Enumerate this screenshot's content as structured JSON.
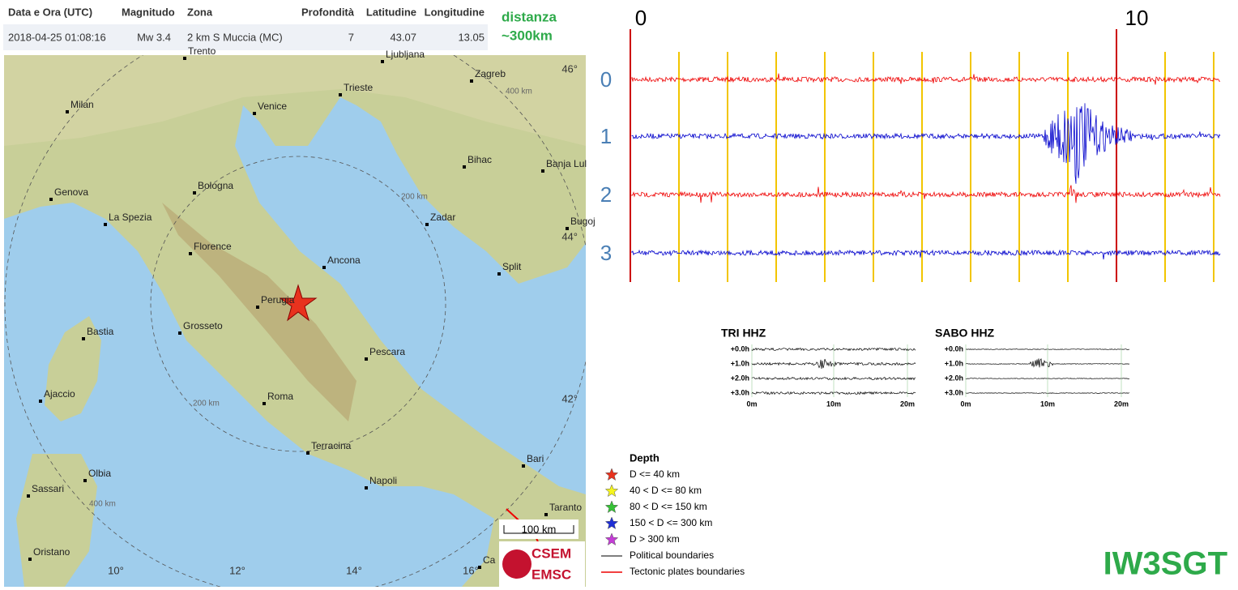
{
  "table": {
    "headers": [
      "Data e Ora (UTC)",
      "Magnitudo",
      "Zona",
      "Profondità",
      "Latitudine",
      "Longitudine"
    ],
    "rows": [
      [
        "2018-04-25 01:08:16",
        "Mw 3.4",
        "2 km S Muccia (MC)",
        "7",
        "43.07",
        "13.05"
      ]
    ]
  },
  "note": {
    "lines": [
      "distanza",
      "~300km"
    ]
  },
  "map": {
    "cities": [
      "Trento",
      "Ljubljana",
      "Zagreb",
      "Milan",
      "Venice",
      "Trieste",
      "Bihac",
      "Banja Lul",
      "Genova",
      "Bologna",
      "Zadar",
      "La Spezia",
      "Bugoj",
      "Florence",
      "Ancona",
      "Split",
      "Perugia",
      "Bastia",
      "Grosseto",
      "Pescara",
      "Ajaccio",
      "Roma",
      "Terracina",
      "Bari",
      "Olbia",
      "Sassari",
      "Napoli",
      "Taranto",
      "Oristano",
      "Ca"
    ],
    "lat_labels": [
      "46°",
      "44°",
      "42°"
    ],
    "lon_labels": [
      "10°",
      "12°",
      "14°",
      "16°"
    ],
    "ring_labels": [
      "200 km",
      "200 km",
      "400 km",
      "400 km"
    ],
    "scale": "100 km",
    "logo": [
      "CSEM",
      "EMSC"
    ]
  },
  "seismogram": {
    "time_labels": [
      "0",
      "10"
    ],
    "trace_labels": [
      "0",
      "1",
      "2",
      "3"
    ]
  },
  "helicorders": [
    {
      "title": "TRI HHZ",
      "rows": [
        "+0.0h",
        "+1.0h",
        "+2.0h",
        "+3.0h"
      ],
      "x_labels": [
        "0m",
        "10m",
        "20m"
      ]
    },
    {
      "title": "SABO HHZ",
      "rows": [
        "+0.0h",
        "+1.0h",
        "+2.0h",
        "+3.0h"
      ],
      "x_labels": [
        "0m",
        "10m",
        "20m"
      ]
    }
  ],
  "legend": {
    "title": "Depth",
    "items": [
      {
        "label": "D <= 40 km"
      },
      {
        "label": "40 < D <= 80 km"
      },
      {
        "label": "80 < D <= 150 km"
      },
      {
        "label": "150 < D <= 300 km"
      },
      {
        "label": "D > 300 km"
      },
      {
        "label": "Political boundaries"
      },
      {
        "label": "Tectonic plates boundaries"
      }
    ]
  },
  "callsign": "IW3SGT"
}
